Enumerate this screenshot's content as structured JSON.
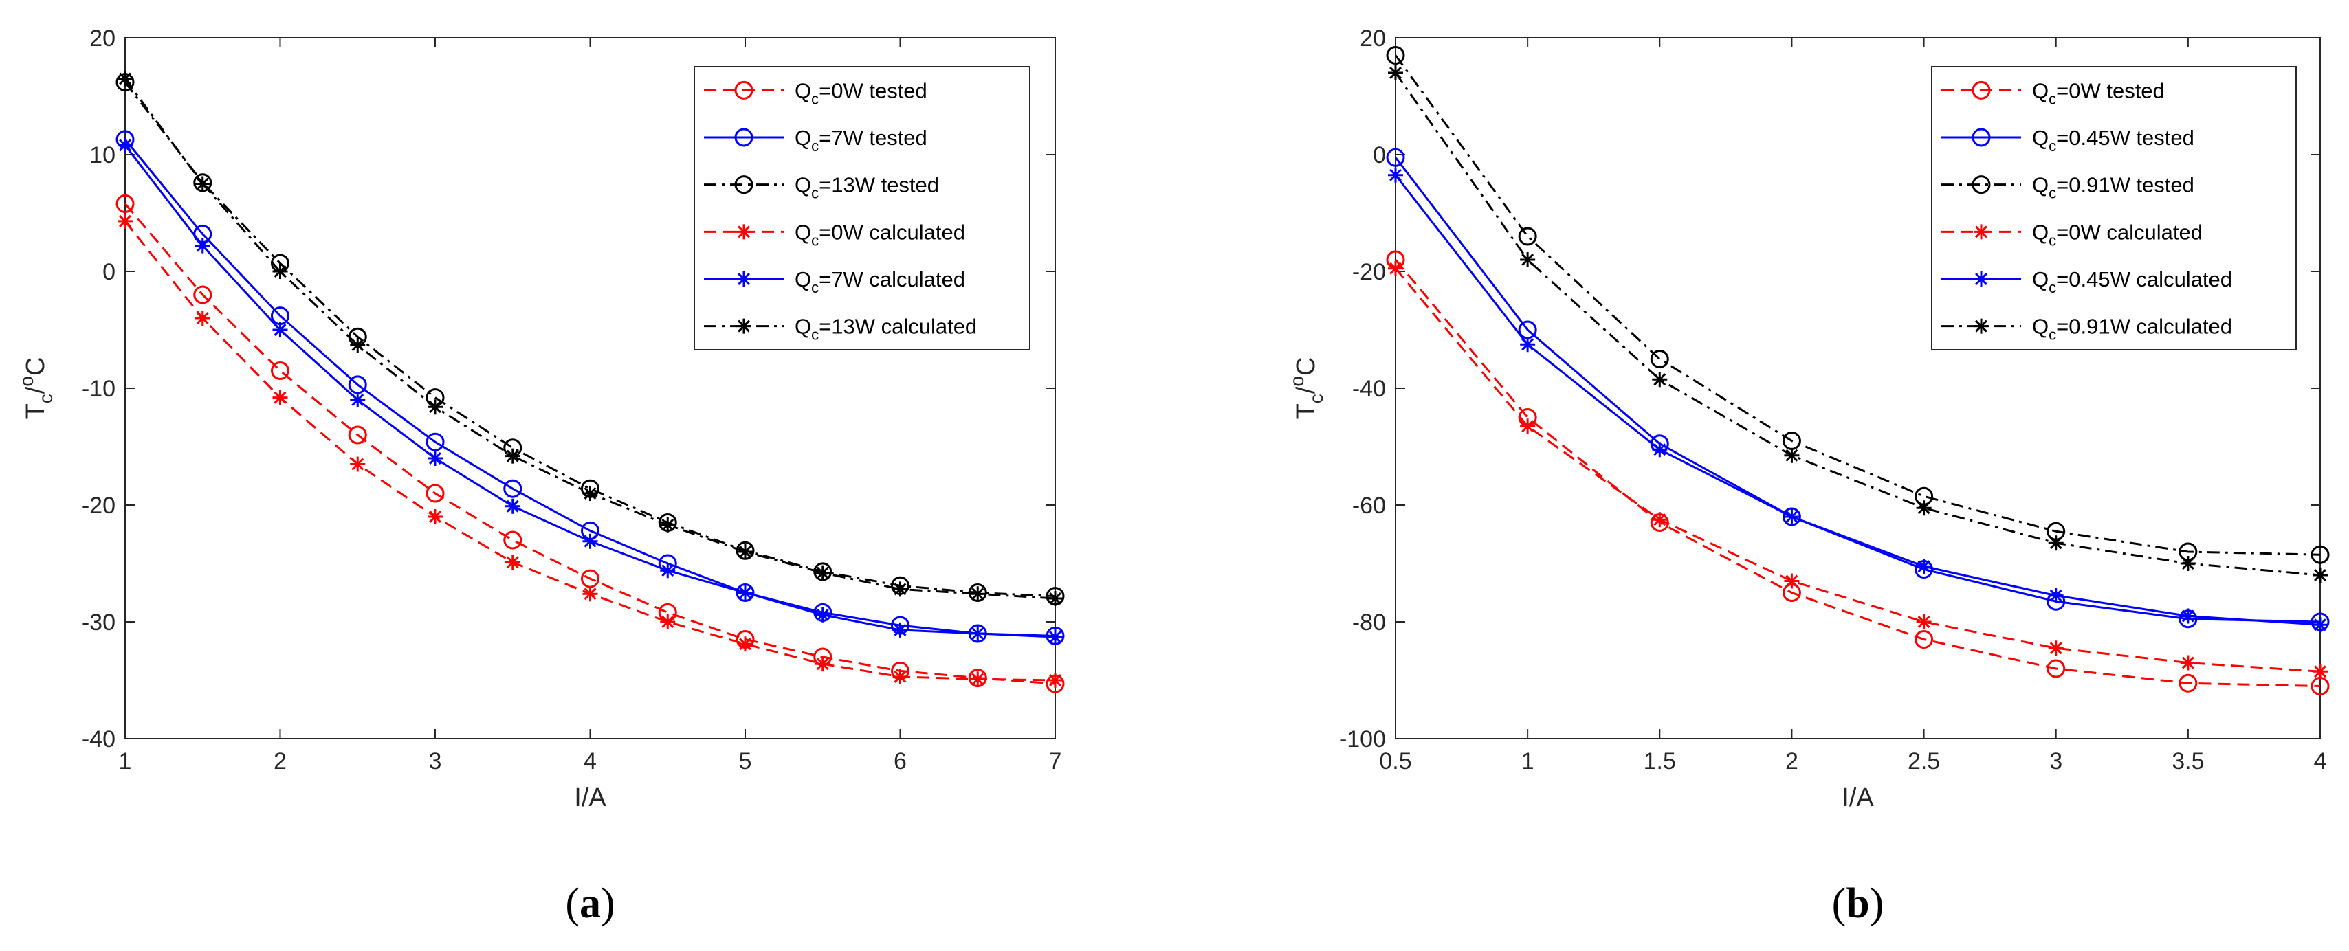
{
  "chart_data": [
    {
      "type": "line",
      "panel_label": {
        "open": "(",
        "letter": "a",
        "close": ")"
      },
      "xlabel": "I/A",
      "ylabel": {
        "main": "T",
        "sub": "c",
        "sep": "/",
        "sup": "o",
        "unit": "C"
      },
      "xlim": [
        1,
        7
      ],
      "ylim": [
        -40,
        20
      ],
      "xticks": [
        1,
        2,
        3,
        4,
        5,
        6,
        7
      ],
      "yticks": [
        20,
        10,
        0,
        -10,
        -20,
        -30,
        -40
      ],
      "legend_position": "top-right",
      "x": [
        1,
        1.5,
        2,
        2.5,
        3,
        3.5,
        4,
        4.5,
        5,
        5.5,
        6,
        6.5,
        7
      ],
      "series": [
        {
          "name": "Q_c=0W tested",
          "legend": {
            "pre": "Q",
            "sub": "c",
            "post": "=0W tested"
          },
          "color": "#ff0000",
          "dash": "dashed",
          "marker": "circle",
          "values": [
            5.8,
            -2.0,
            -8.5,
            -14.0,
            -19.0,
            -23.0,
            -26.3,
            -29.2,
            -31.5,
            -33.0,
            -34.2,
            -34.8,
            -35.3
          ]
        },
        {
          "name": "Q_c=7W tested",
          "legend": {
            "pre": "Q",
            "sub": "c",
            "post": "=7W tested"
          },
          "color": "#0000ff",
          "dash": "solid",
          "marker": "circle",
          "values": [
            11.3,
            3.2,
            -3.8,
            -9.7,
            -14.6,
            -18.6,
            -22.2,
            -25.0,
            -27.5,
            -29.2,
            -30.3,
            -31.0,
            -31.2
          ]
        },
        {
          "name": "Q_c=13W tested",
          "legend": {
            "pre": "Q",
            "sub": "c",
            "post": "=13W tested"
          },
          "color": "#000000",
          "dash": "dashdot",
          "marker": "circle",
          "values": [
            16.2,
            7.6,
            0.7,
            -5.6,
            -10.8,
            -15.1,
            -18.6,
            -21.5,
            -23.9,
            -25.7,
            -26.9,
            -27.5,
            -27.8
          ]
        },
        {
          "name": "Q_c=0W calculated",
          "legend": {
            "pre": "Q",
            "sub": "c",
            "post": "=0W calculated"
          },
          "color": "#ff0000",
          "dash": "dashed",
          "marker": "star",
          "values": [
            4.3,
            -4.0,
            -10.8,
            -16.5,
            -21.0,
            -24.9,
            -27.6,
            -30.0,
            -31.9,
            -33.6,
            -34.7,
            -34.9,
            -35.0
          ]
        },
        {
          "name": "Q_c=7W calculated",
          "legend": {
            "pre": "Q",
            "sub": "c",
            "post": "=7W calculated"
          },
          "color": "#0000ff",
          "dash": "solid",
          "marker": "star",
          "values": [
            10.8,
            2.2,
            -5.0,
            -11.0,
            -16.0,
            -20.1,
            -23.1,
            -25.6,
            -27.5,
            -29.4,
            -30.7,
            -31.0,
            -31.3
          ]
        },
        {
          "name": "Q_c=13W calculated",
          "legend": {
            "pre": "Q",
            "sub": "c",
            "post": "=13W calculated"
          },
          "color": "#000000",
          "dash": "dashdot",
          "marker": "star",
          "values": [
            16.5,
            7.5,
            0.0,
            -6.3,
            -11.6,
            -15.8,
            -19.0,
            -21.7,
            -24.0,
            -25.8,
            -27.2,
            -27.6,
            -28.0
          ]
        }
      ]
    },
    {
      "type": "line",
      "panel_label": {
        "open": "(",
        "letter": "b",
        "close": ")"
      },
      "xlabel": "I/A",
      "ylabel": {
        "main": "T",
        "sub": "c",
        "sep": "/",
        "sup": "o",
        "unit": "C"
      },
      "xlim": [
        0.5,
        4
      ],
      "ylim": [
        -100,
        20
      ],
      "xticks": [
        0.5,
        1,
        1.5,
        2,
        2.5,
        3,
        3.5,
        4
      ],
      "yticks": [
        20,
        0,
        -20,
        -40,
        -60,
        -80,
        -100
      ],
      "legend_position": "top-right",
      "x": [
        0.5,
        1,
        1.5,
        2,
        2.5,
        3,
        3.5,
        4
      ],
      "series": [
        {
          "name": "Q_c=0W tested",
          "legend": {
            "pre": "Q",
            "sub": "c",
            "post": "=0W tested"
          },
          "color": "#ff0000",
          "dash": "dashed",
          "marker": "circle",
          "values": [
            -18.0,
            -45.0,
            -63.0,
            -75.0,
            -83.0,
            -88.0,
            -90.5,
            -91.0
          ]
        },
        {
          "name": "Q_c=0.45W tested",
          "legend": {
            "pre": "Q",
            "sub": "c",
            "post": "=0.45W tested"
          },
          "color": "#0000ff",
          "dash": "solid",
          "marker": "circle",
          "values": [
            -0.5,
            -30.0,
            -49.5,
            -62.0,
            -71.0,
            -76.5,
            -79.5,
            -80.0
          ]
        },
        {
          "name": "Q_c=0.91W tested",
          "legend": {
            "pre": "Q",
            "sub": "c",
            "post": "=0.91W tested"
          },
          "color": "#000000",
          "dash": "dashdot",
          "marker": "circle",
          "values": [
            17.0,
            -14.0,
            -35.0,
            -49.0,
            -58.5,
            -64.5,
            -68.0,
            -68.5
          ]
        },
        {
          "name": "Q_c=0W calculated",
          "legend": {
            "pre": "Q",
            "sub": "c",
            "post": "=0W calculated"
          },
          "color": "#ff0000",
          "dash": "dashed",
          "marker": "star",
          "values": [
            -19.5,
            -46.5,
            -62.5,
            -73.0,
            -80.0,
            -84.5,
            -87.0,
            -88.5
          ]
        },
        {
          "name": "Q_c=0.45W calculated",
          "legend": {
            "pre": "Q",
            "sub": "c",
            "post": "=0.45W calculated"
          },
          "color": "#0000ff",
          "dash": "solid",
          "marker": "star",
          "values": [
            -3.5,
            -32.5,
            -50.5,
            -62.0,
            -70.5,
            -75.5,
            -79.0,
            -80.5
          ]
        },
        {
          "name": "Q_c=0.91W calculated",
          "legend": {
            "pre": "Q",
            "sub": "c",
            "post": "=0.91W calculated"
          },
          "color": "#000000",
          "dash": "dashdot",
          "marker": "star",
          "values": [
            14.0,
            -18.0,
            -38.5,
            -51.5,
            -60.5,
            -66.5,
            -70.0,
            -72.0
          ]
        }
      ]
    }
  ]
}
